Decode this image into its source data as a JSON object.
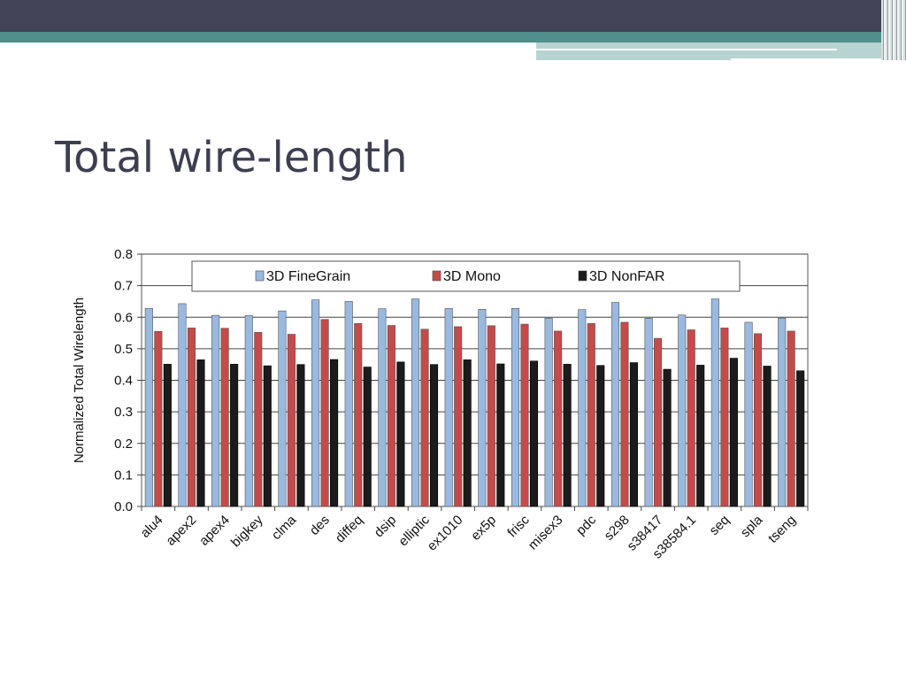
{
  "slide": {
    "title": "Total wire-length"
  },
  "theme": {
    "header_dark": "#434358",
    "header_teal": "#4f8f8c",
    "header_light": "#b7d3d2",
    "title_color": "#3d3f51"
  },
  "chart_data": {
    "type": "bar",
    "title": "",
    "xlabel": "",
    "ylabel": "Normalized Total Wirelength",
    "ylim": [
      0,
      0.8
    ],
    "yticks": [
      "0.0",
      "0.1",
      "0.2",
      "0.3",
      "0.4",
      "0.5",
      "0.6",
      "0.7",
      "0.8"
    ],
    "grid": true,
    "legend_position": "top",
    "categories": [
      "alu4",
      "apex2",
      "apex4",
      "bigkey",
      "clma",
      "des",
      "diffeq",
      "dsip",
      "elliptic",
      "ex1010",
      "ex5p",
      "frisc",
      "misex3",
      "pdc",
      "s298",
      "s38417",
      "s38584.1",
      "seq",
      "spla",
      "tseng"
    ],
    "series": [
      {
        "name": "3D FineGrain",
        "color": "#9ab9e0",
        "values": [
          0.628,
          0.643,
          0.606,
          0.605,
          0.62,
          0.655,
          0.65,
          0.627,
          0.658,
          0.628,
          0.625,
          0.628,
          0.597,
          0.624,
          0.647,
          0.597,
          0.607,
          0.658,
          0.584,
          0.597
        ]
      },
      {
        "name": "3D Mono",
        "color": "#c64a4a",
        "values": [
          0.555,
          0.566,
          0.565,
          0.552,
          0.546,
          0.593,
          0.58,
          0.574,
          0.562,
          0.57,
          0.573,
          0.578,
          0.556,
          0.58,
          0.584,
          0.533,
          0.56,
          0.566,
          0.548,
          0.556
        ]
      },
      {
        "name": "3D NonFAR",
        "color": "#1b1b1b",
        "values": [
          0.451,
          0.465,
          0.451,
          0.446,
          0.45,
          0.466,
          0.442,
          0.458,
          0.45,
          0.465,
          0.452,
          0.461,
          0.451,
          0.447,
          0.456,
          0.435,
          0.448,
          0.47,
          0.445,
          0.43
        ]
      }
    ]
  }
}
